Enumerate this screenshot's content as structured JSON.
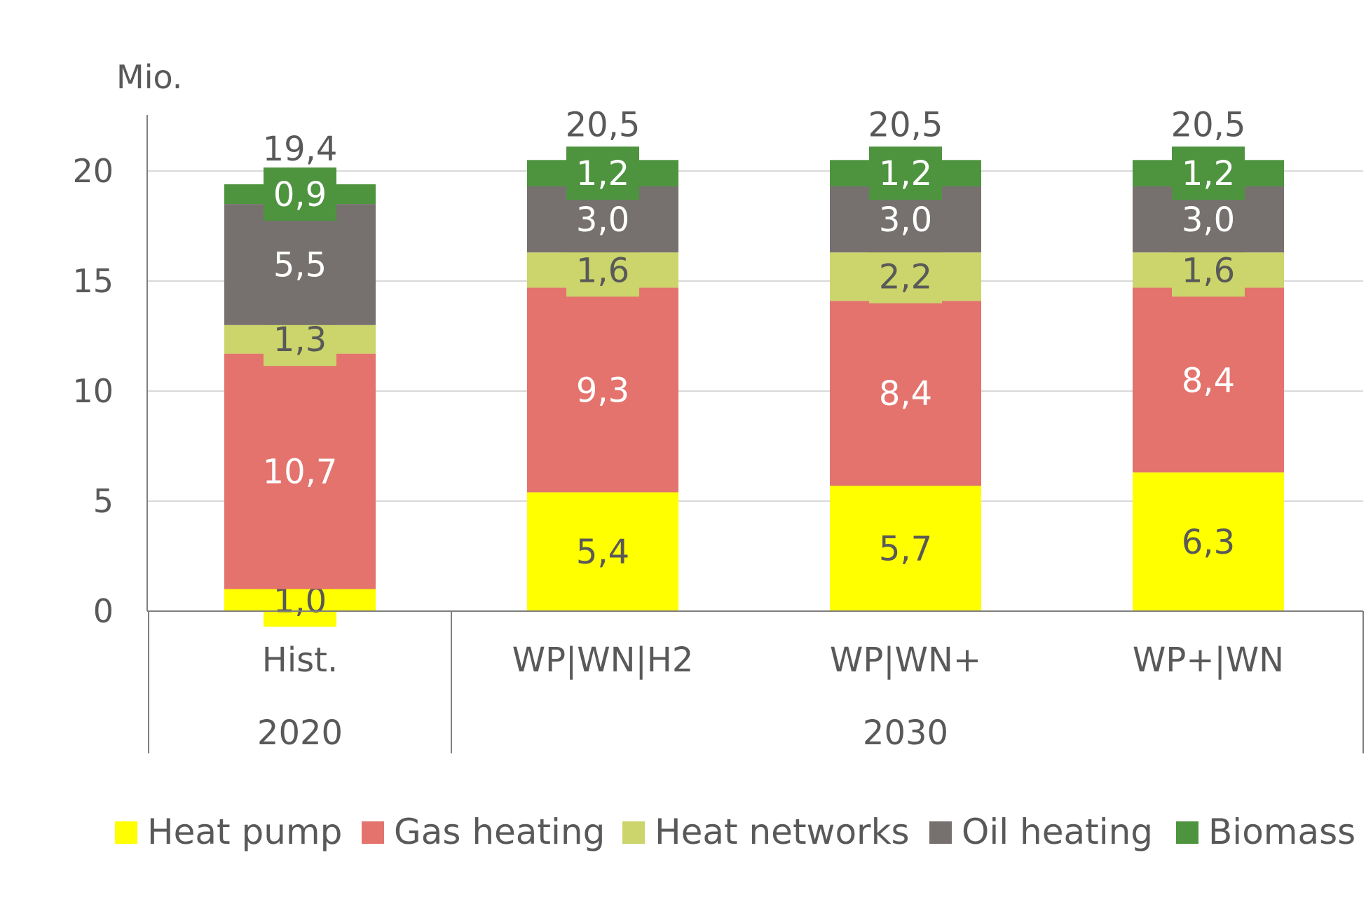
{
  "chart_data": {
    "type": "bar",
    "stacked": true,
    "unit_label": "Mio.",
    "ylim": [
      0,
      22
    ],
    "yticks": [
      0,
      5,
      10,
      15,
      20
    ],
    "grid": true,
    "legend_position": "bottom",
    "categories": [
      "Hist.",
      "WP|WN|H2",
      "WP|WN+",
      "WP+|WN"
    ],
    "groups": [
      {
        "label": "2020",
        "categories": [
          "Hist."
        ]
      },
      {
        "label": "2030",
        "categories": [
          "WP|WN|H2",
          "WP|WN+",
          "WP+|WN"
        ]
      }
    ],
    "series": [
      {
        "name": "Heat pump",
        "color": "#ffff00",
        "label_color": "#595959",
        "values": [
          1.0,
          5.4,
          5.7,
          6.3
        ],
        "labels": [
          "1,0",
          "5,4",
          "5,7",
          "6,3"
        ]
      },
      {
        "name": "Gas heating",
        "color": "#e3736c",
        "label_color": "#ffffff",
        "values": [
          10.7,
          9.3,
          8.4,
          8.4
        ],
        "labels": [
          "10,7",
          "9,3",
          "8,4",
          "8,4"
        ]
      },
      {
        "name": "Heat networks",
        "color": "#cbd56b",
        "label_color": "#595959",
        "values": [
          1.3,
          1.6,
          2.2,
          1.6
        ],
        "labels": [
          "1,3",
          "1,6",
          "2,2",
          "1,6"
        ]
      },
      {
        "name": "Oil heating",
        "color": "#76716e",
        "label_color": "#ffffff",
        "values": [
          5.5,
          3.0,
          3.0,
          3.0
        ],
        "labels": [
          "5,5",
          "3,0",
          "3,0",
          "3,0"
        ]
      },
      {
        "name": "Biomass",
        "color": "#4e943f",
        "label_color": "#ffffff",
        "values": [
          0.9,
          1.2,
          1.2,
          1.2
        ],
        "labels": [
          "0,9",
          "1,2",
          "1,2",
          "1,2"
        ]
      }
    ],
    "totals": [
      19.4,
      20.5,
      20.5,
      20.5
    ],
    "total_labels": [
      "19,4",
      "20,5",
      "20,5",
      "20,5"
    ]
  }
}
